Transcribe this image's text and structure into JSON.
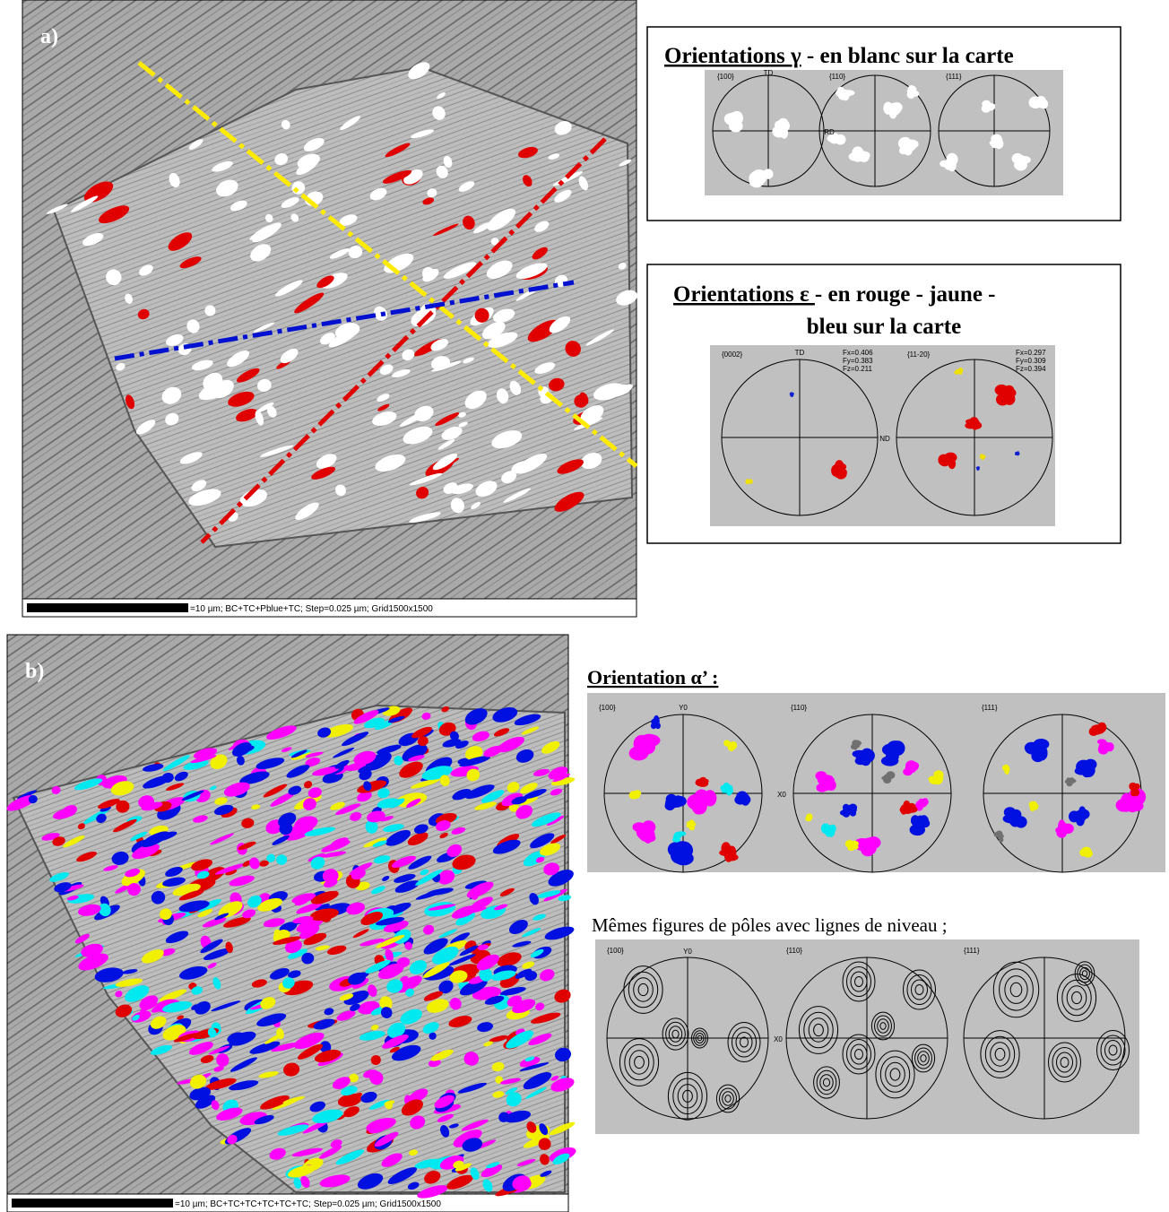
{
  "panel_a": {
    "label": "a)",
    "scale_text": "=10 µm; BC+TC+Pblue+TC; Step=0.025 µm; Grid1500x1500"
  },
  "gamma_box": {
    "title_underlined": "Orientations γ",
    "title_rest": " - en blanc sur la carte",
    "pole_labels": [
      "{100}",
      "{110}",
      "{111}"
    ],
    "axis_top": "TD",
    "axis_side": "RD"
  },
  "epsilon_box": {
    "title_underlined": "Orientations ε ",
    "title_rest": " - en rouge - jaune -",
    "title_line2": "bleu sur la carte",
    "pole_labels": [
      "{0002}",
      "{11-20}"
    ],
    "axis_top": "TD",
    "axis_side": "ND",
    "stats": [
      [
        "Fx=0.406",
        "Fy=0.383",
        "Fz=0.211"
      ],
      [
        "Fx=0.297",
        "Fy=0.309",
        "Fz=0.394"
      ]
    ]
  },
  "panel_b": {
    "label": "b)",
    "scale_text": "=10 µm; BC+TC+TC+TC+TC+TC; Step=0.025 µm; Grid1500x1500"
  },
  "alpha_section": {
    "title": "Orientation α’ :",
    "pole_labels": [
      "{100}",
      "{110}",
      "{111}"
    ],
    "axis_top": "Y0",
    "axis_side": "X0"
  },
  "contour_section": {
    "caption": "Mêmes figures de pôles avec lignes de niveau ;",
    "pole_labels": [
      "{100}",
      "{110}",
      "{111}"
    ],
    "axis_top": "Y0",
    "axis_side": "X0"
  }
}
